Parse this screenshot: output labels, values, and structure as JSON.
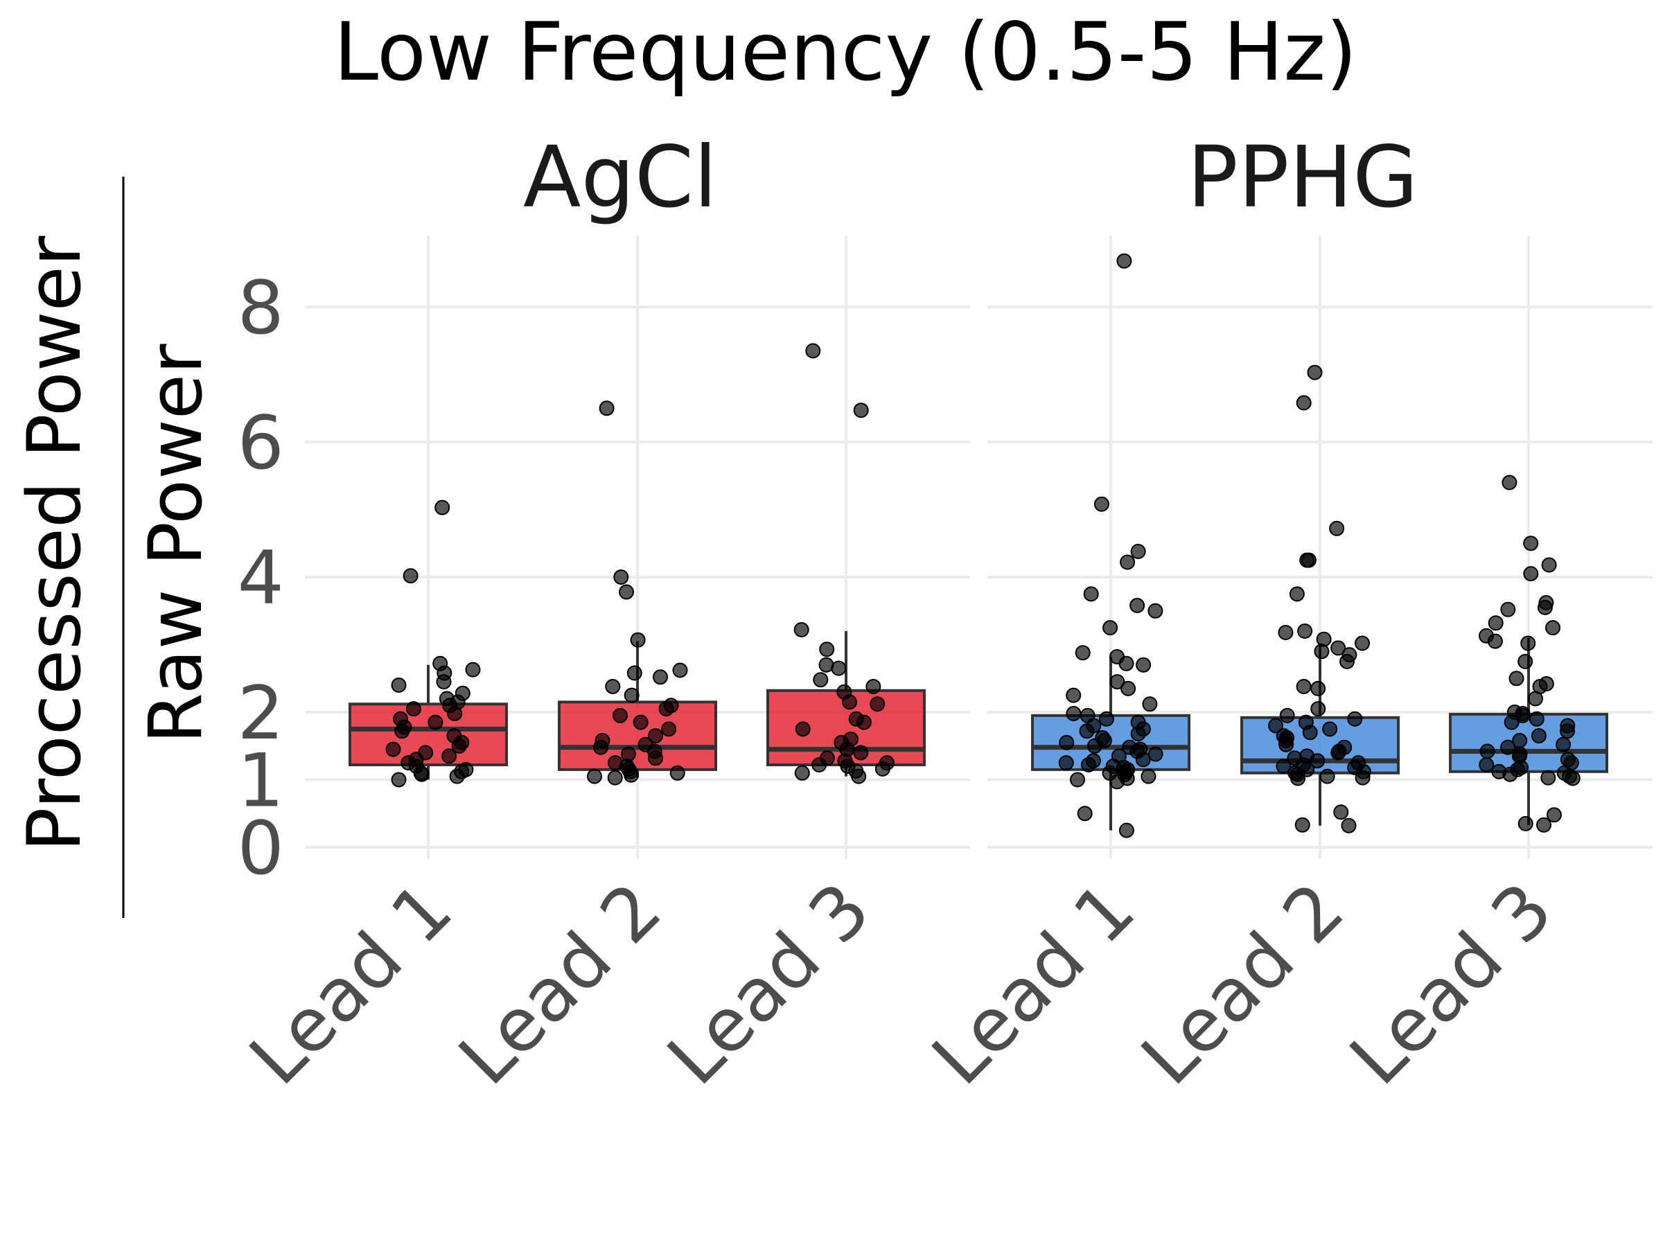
{
  "chart_data": {
    "type": "box",
    "title": "Low Frequency (0.5-5 Hz)",
    "ylabel": {
      "numerator": "Processed Power",
      "denominator": "Raw Power"
    },
    "ylim": [
      0,
      9
    ],
    "yticks": [
      0,
      1,
      2,
      4,
      6,
      8
    ],
    "categories": [
      "Lead 1",
      "Lead 2",
      "Lead 3"
    ],
    "grid": true,
    "facets": [
      {
        "name": "AgCl",
        "color": "#E41A2A",
        "boxes": [
          {
            "category": "Lead 1",
            "q1": 1.22,
            "median": 1.75,
            "q3": 2.12,
            "whisker_low": 1.0,
            "whisker_high": 2.7,
            "points": [
              5.03,
              4.02,
              2.72,
              2.63,
              2.58,
              2.45,
              2.4,
              2.28,
              2.2,
              2.15,
              2.1,
              2.05,
              1.98,
              1.9,
              1.85,
              1.78,
              1.72,
              1.65,
              1.55,
              1.5,
              1.45,
              1.4,
              1.35,
              1.3,
              1.25,
              1.2,
              1.15,
              1.12,
              1.1,
              1.08,
              1.05,
              1.0
            ]
          },
          {
            "category": "Lead 2",
            "q1": 1.15,
            "median": 1.48,
            "q3": 2.15,
            "whisker_low": 1.03,
            "whisker_high": 3.05,
            "points": [
              6.5,
              4.0,
              3.78,
              3.07,
              2.62,
              2.58,
              2.52,
              2.38,
              2.25,
              2.1,
              2.05,
              1.95,
              1.85,
              1.75,
              1.65,
              1.58,
              1.52,
              1.48,
              1.42,
              1.38,
              1.32,
              1.25,
              1.2,
              1.16,
              1.12,
              1.1,
              1.07,
              1.05,
              1.03
            ]
          },
          {
            "category": "Lead 3",
            "q1": 1.22,
            "median": 1.45,
            "q3": 2.32,
            "whisker_low": 1.05,
            "whisker_high": 3.2,
            "points": [
              7.35,
              6.47,
              3.22,
              2.93,
              2.7,
              2.65,
              2.48,
              2.38,
              2.3,
              2.15,
              2.12,
              1.9,
              1.85,
              1.75,
              1.6,
              1.55,
              1.45,
              1.4,
              1.32,
              1.28,
              1.25,
              1.22,
              1.2,
              1.16,
              1.13,
              1.1,
              1.05
            ]
          }
        ]
      },
      {
        "name": "PPHG",
        "color": "#3D85D8",
        "boxes": [
          {
            "category": "Lead 1",
            "q1": 1.15,
            "median": 1.48,
            "q3": 1.95,
            "whisker_low": 0.25,
            "whisker_high": 2.82,
            "points": [
              8.68,
              5.08,
              4.38,
              4.22,
              3.75,
              3.58,
              3.5,
              3.25,
              2.88,
              2.82,
              2.72,
              2.7,
              2.45,
              2.35,
              2.25,
              2.12,
              1.98,
              1.95,
              1.9,
              1.85,
              1.8,
              1.75,
              1.72,
              1.68,
              1.62,
              1.58,
              1.55,
              1.5,
              1.48,
              1.45,
              1.42,
              1.38,
              1.35,
              1.3,
              1.28,
              1.25,
              1.22,
              1.2,
              1.18,
              1.15,
              1.12,
              1.1,
              1.08,
              1.05,
              1.02,
              1.0,
              0.97,
              0.5,
              0.25
            ]
          },
          {
            "category": "Lead 2",
            "q1": 1.1,
            "median": 1.28,
            "q3": 1.92,
            "whisker_low": 0.32,
            "whisker_high": 3.02,
            "points": [
              7.03,
              6.58,
              4.72,
              4.25,
              4.25,
              3.75,
              3.2,
              3.18,
              3.08,
              3.02,
              2.95,
              2.9,
              2.85,
              2.75,
              2.38,
              2.35,
              2.05,
              1.95,
              1.9,
              1.85,
              1.8,
              1.75,
              1.7,
              1.65,
              1.62,
              1.58,
              1.52,
              1.48,
              1.42,
              1.4,
              1.35,
              1.32,
              1.28,
              1.25,
              1.22,
              1.2,
              1.18,
              1.15,
              1.12,
              1.1,
              1.08,
              1.05,
              1.03,
              1.02,
              0.52,
              0.33,
              0.32
            ]
          },
          {
            "category": "Lead 3",
            "q1": 1.12,
            "median": 1.42,
            "q3": 1.97,
            "whisker_low": 0.33,
            "whisker_high": 3.1,
            "points": [
              5.4,
              4.5,
              4.18,
              4.05,
              3.62,
              3.55,
              3.52,
              3.32,
              3.25,
              3.13,
              3.05,
              3.02,
              2.75,
              2.5,
              2.42,
              2.38,
              2.2,
              2.0,
              1.98,
              1.95,
              1.9,
              1.85,
              1.8,
              1.72,
              1.65,
              1.58,
              1.52,
              1.48,
              1.42,
              1.38,
              1.35,
              1.3,
              1.25,
              1.22,
              1.18,
              1.15,
              1.12,
              1.1,
              1.08,
              1.05,
              1.03,
              1.02,
              0.48,
              0.35,
              0.33
            ]
          }
        ]
      }
    ]
  }
}
